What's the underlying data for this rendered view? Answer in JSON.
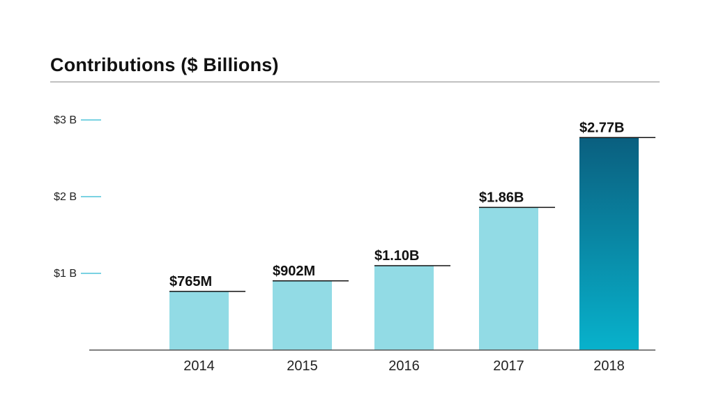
{
  "chart_data": {
    "type": "bar",
    "title": "Contributions ($ Billions)",
    "xlabel": "",
    "ylabel": "",
    "categories": [
      "2014",
      "2015",
      "2016",
      "2017",
      "2018"
    ],
    "values": [
      0.765,
      0.902,
      1.1,
      1.86,
      2.77
    ],
    "data_labels": [
      "$765M",
      "$902M",
      "$1.10B",
      "$1.86B",
      "$2.77B"
    ],
    "ylim": [
      0,
      3
    ],
    "yticks": [
      {
        "value": 1,
        "label": "$1 B"
      },
      {
        "value": 2,
        "label": "$2 B"
      },
      {
        "value": 3,
        "label": "$3 B"
      }
    ],
    "grid": false,
    "legend": "none",
    "colors": {
      "bar": "#92dbe5",
      "highlight_top": "#0a5f7f",
      "highlight_bottom": "#08b2cc",
      "tick_mark": "#4fc3d9",
      "axis": "#555555",
      "label_rule": "#111111"
    },
    "highlight_index": 4
  }
}
